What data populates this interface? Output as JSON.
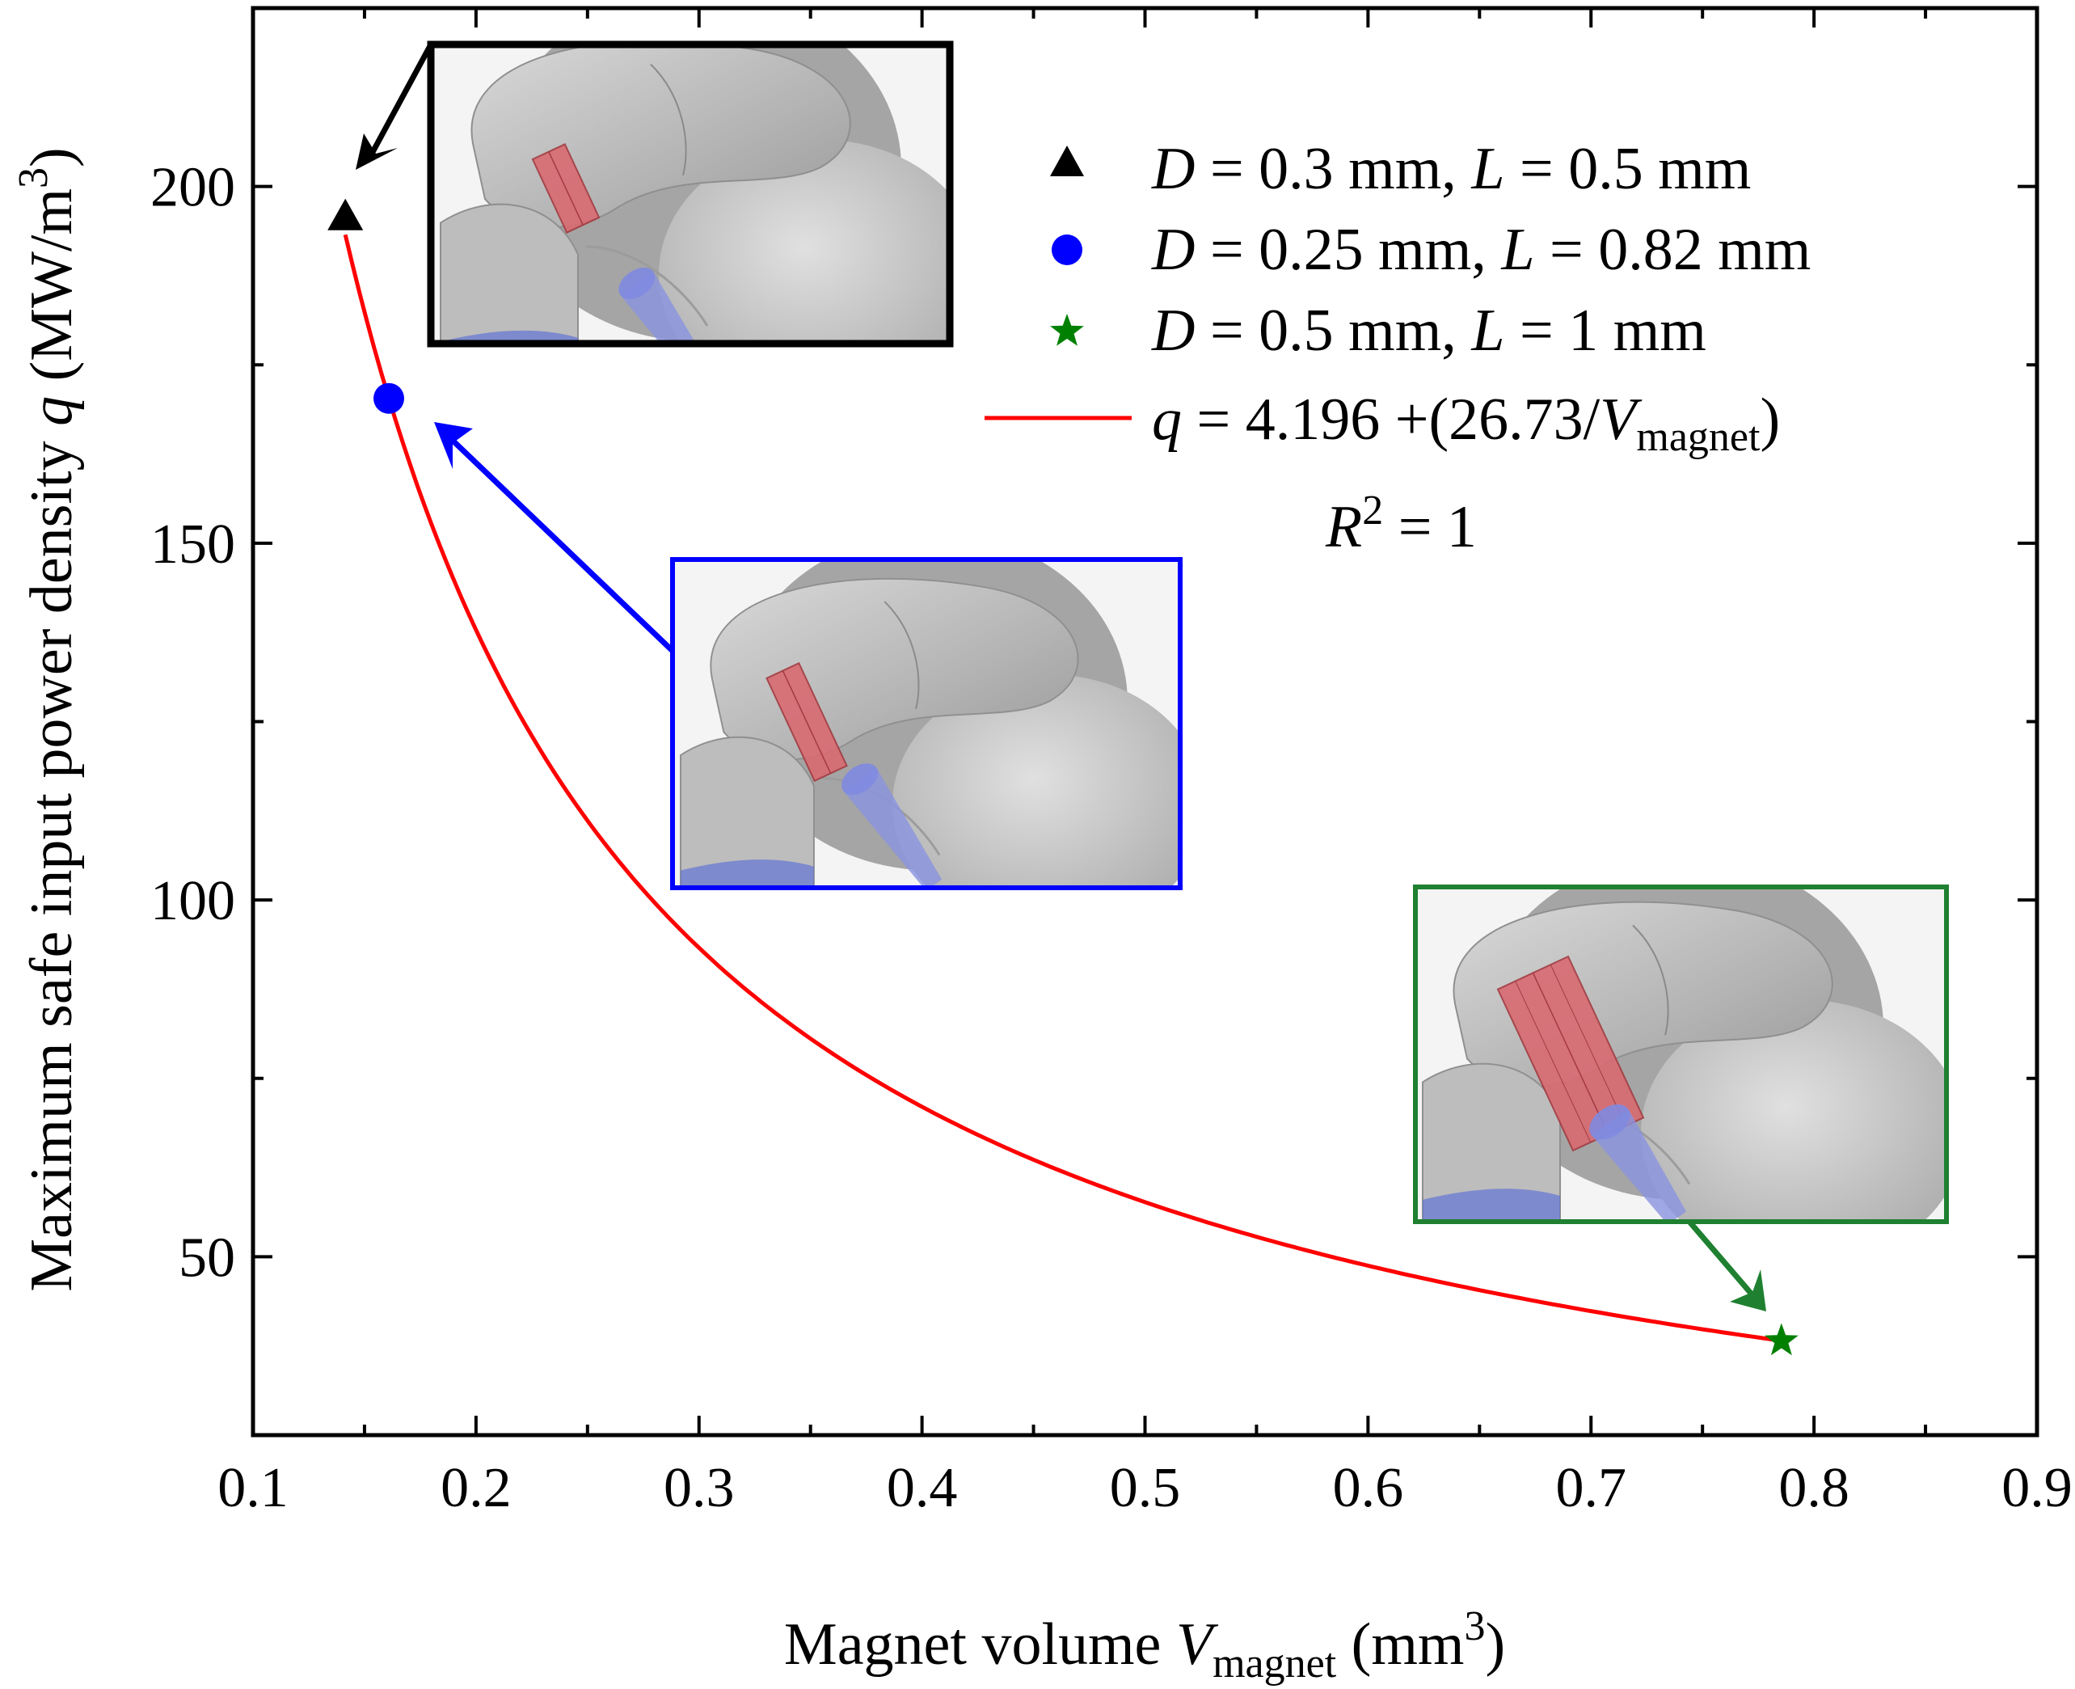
{
  "chart_data": {
    "type": "scatter",
    "xlabel": {
      "main": "Magnet volume ",
      "var": "V",
      "sub": "magnet",
      "unit": " (mm",
      "sup": "3",
      "close": ")"
    },
    "ylabel": {
      "main": "Maximum safe input power density ",
      "var": "q",
      "unit": " (MW/m",
      "sup": "3",
      "close": ")"
    },
    "xlim": [
      0.1,
      0.9
    ],
    "ylim": [
      25,
      225
    ],
    "xticks": [
      "0.1",
      "0.2",
      "0.3",
      "0.4",
      "0.5",
      "0.6",
      "0.7",
      "0.8",
      "0.9"
    ],
    "yticks": [
      "50",
      "100",
      "150",
      "200"
    ],
    "xtick_values": [
      0.1,
      0.2,
      0.3,
      0.4,
      0.5,
      0.6,
      0.7,
      0.8,
      0.9
    ],
    "ytick_values": [
      50,
      100,
      150,
      200
    ],
    "grid": false,
    "legend_position": "top-right",
    "series": [
      {
        "name": "D = 0.3 mm, L = 0.5 mm",
        "marker": "triangle",
        "color": "#000000",
        "x": 0.1414,
        "y": 195.8,
        "label": {
          "v1": "D",
          "t1": " = 0.3 mm, ",
          "v2": "L",
          "t2": " = 0.5 mm"
        }
      },
      {
        "name": "D = 0.25 mm, L = 0.82 mm",
        "marker": "circle",
        "color": "#0000ff",
        "x": 0.1609,
        "y": 170.3,
        "label": {
          "v1": "D",
          "t1": " = 0.25 mm, ",
          "v2": "L",
          "t2": " = 0.82 mm"
        }
      },
      {
        "name": "D = 0.5 mm, L = 1 mm",
        "marker": "star",
        "color": "#008000",
        "x": 0.7854,
        "y": 38.2,
        "label": {
          "v1": "D",
          "t1": " = 0.5 mm, ",
          "v2": "L",
          "t2": " = 1 mm"
        }
      }
    ],
    "fit": {
      "name": "q = 4.196 +(26.73/V_magnet)",
      "color": "#ff0000",
      "intercept": 4.196,
      "coefficient": 26.73,
      "x_range": [
        0.1414,
        0.7854
      ],
      "label": {
        "v": "q",
        "t1": " = 4.196 +(26.73/",
        "v2": "V",
        "sub": "magnet",
        "t2": ")"
      },
      "r2_label": {
        "v": "R",
        "sup": "2",
        "t": " = 1"
      }
    },
    "insets": [
      {
        "name": "inset-black",
        "border_color": "#000000",
        "points_to": "D = 0.3 mm, L = 0.5 mm"
      },
      {
        "name": "inset-blue",
        "border_color": "#0000ff",
        "points_to": "D = 0.25 mm, L = 0.82 mm"
      },
      {
        "name": "inset-green",
        "border_color": "#1e8030",
        "points_to": "D = 0.5 mm, L = 1 mm"
      }
    ]
  }
}
